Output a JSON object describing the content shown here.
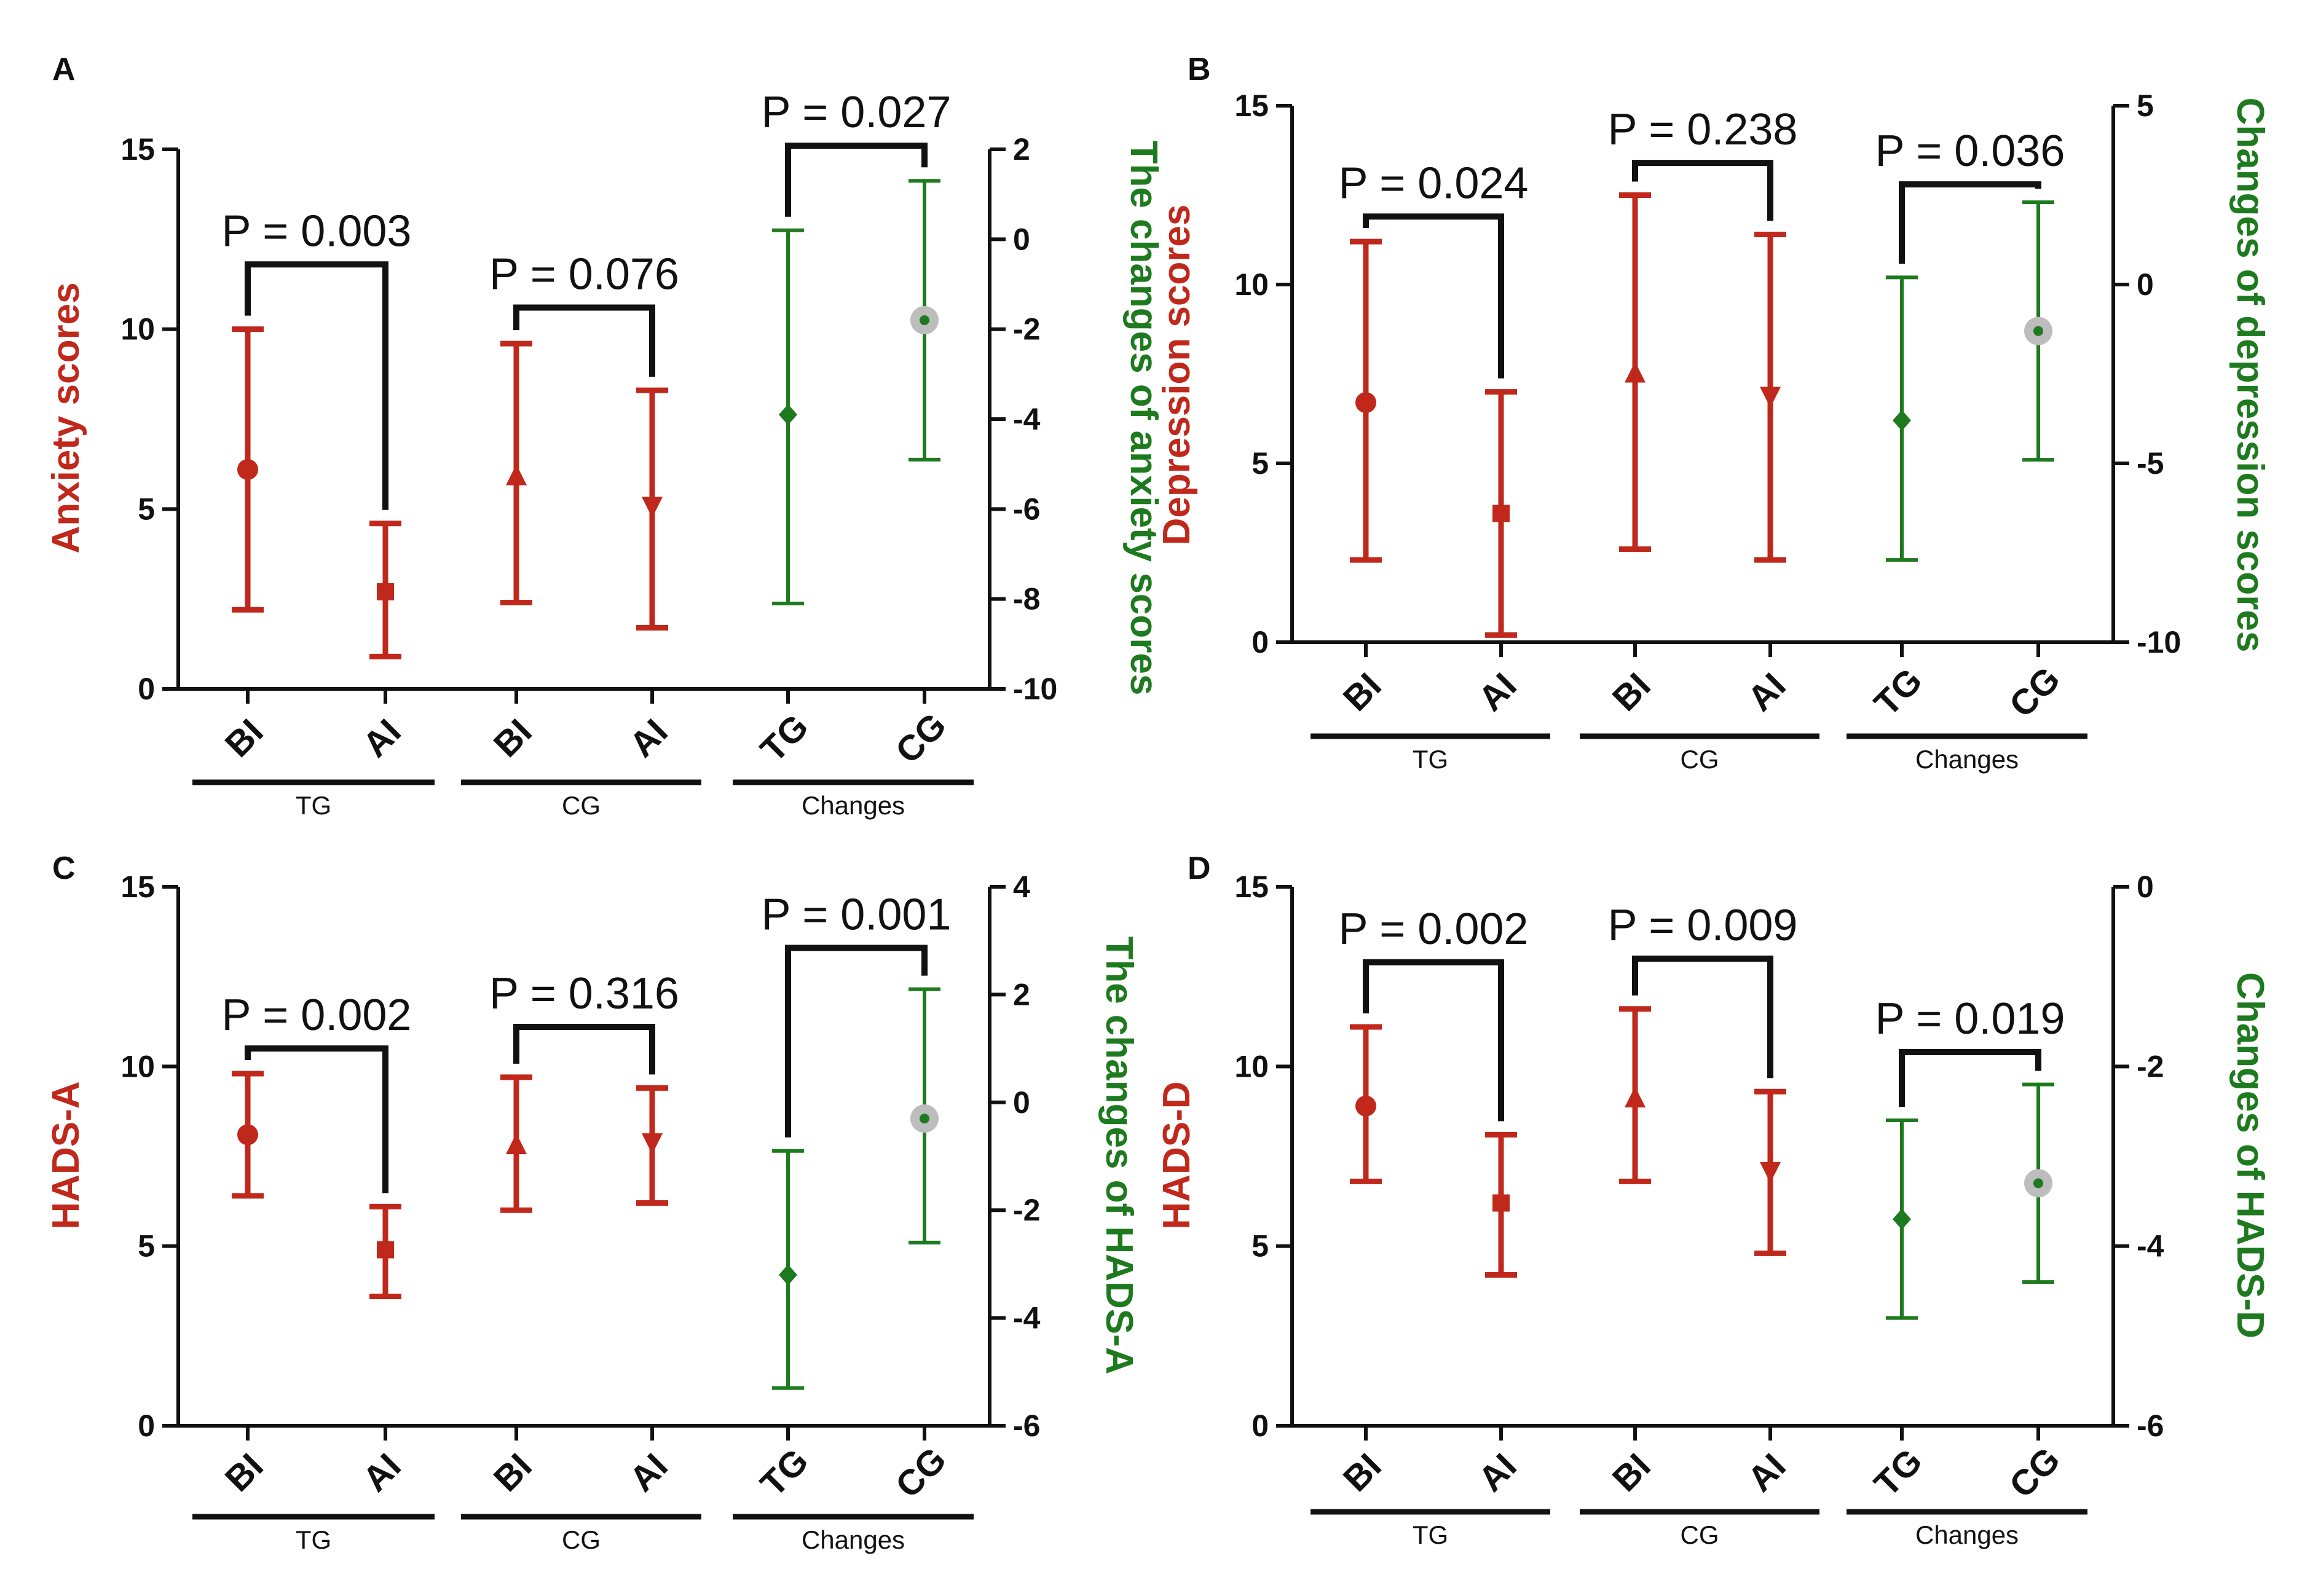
{
  "colors": {
    "primary": "#c0281c",
    "secondary": "#1e7a1e",
    "gray_marker": "#bdbdbd",
    "axis": "#111111"
  },
  "chart_data": [
    {
      "type": "errorbar",
      "panel": "A",
      "ylabel_left": "Anxiety scores",
      "ylabel_right": "The changes of anxiety scores",
      "left_ylim": [
        0,
        15
      ],
      "left_ticks": [
        0,
        5,
        10,
        15
      ],
      "right_ylim": [
        -10,
        2
      ],
      "right_ticks": [
        -10,
        -8,
        -6,
        -4,
        -2,
        0,
        2
      ],
      "categories": [
        "BI",
        "AI",
        "BI",
        "AI",
        "TG",
        "CG"
      ],
      "groups": [
        {
          "label": "TG",
          "from": 0,
          "to": 1
        },
        {
          "label": "CG",
          "from": 2,
          "to": 3
        },
        {
          "label": "Changes",
          "from": 4,
          "to": 5
        }
      ],
      "points": [
        {
          "axis": "left",
          "mean": 6.1,
          "low": 2.2,
          "high": 10.0,
          "marker": "circle"
        },
        {
          "axis": "left",
          "mean": 2.7,
          "low": 0.9,
          "high": 4.6,
          "marker": "square"
        },
        {
          "axis": "left",
          "mean": 5.9,
          "low": 2.4,
          "high": 9.6,
          "marker": "triangle-up"
        },
        {
          "axis": "left",
          "mean": 5.1,
          "low": 1.7,
          "high": 8.3,
          "marker": "triangle-down"
        },
        {
          "axis": "right",
          "mean": -3.9,
          "low": -8.1,
          "high": 0.2,
          "marker": "diamond"
        },
        {
          "axis": "right",
          "mean": -1.8,
          "low": -4.9,
          "high": 1.3,
          "marker": "gray-circle"
        }
      ],
      "comparisons": [
        {
          "from": 0,
          "to": 1,
          "label": "P = 0.003",
          "level": 11.8
        },
        {
          "from": 2,
          "to": 3,
          "label": "P = 0.076",
          "level": 10.6
        },
        {
          "from": 4,
          "to": 5,
          "label": "P = 0.027",
          "level": 15.1
        }
      ]
    },
    {
      "type": "errorbar",
      "panel": "B",
      "ylabel_left": "Depression scores",
      "ylabel_right": "Changes of depression scores",
      "left_ylim": [
        0,
        15
      ],
      "left_ticks": [
        0,
        5,
        10,
        15
      ],
      "right_ylim": [
        -10,
        5
      ],
      "right_ticks": [
        -10,
        -5,
        0,
        5
      ],
      "categories": [
        "BI",
        "AI",
        "BI",
        "AI",
        "TG",
        "CG"
      ],
      "groups": [
        {
          "label": "TG",
          "from": 0,
          "to": 1
        },
        {
          "label": "CG",
          "from": 2,
          "to": 3
        },
        {
          "label": "Changes",
          "from": 4,
          "to": 5
        }
      ],
      "points": [
        {
          "axis": "left",
          "mean": 6.7,
          "low": 2.3,
          "high": 11.2,
          "marker": "circle"
        },
        {
          "axis": "left",
          "mean": 3.6,
          "low": 0.2,
          "high": 7.0,
          "marker": "square"
        },
        {
          "axis": "left",
          "mean": 7.5,
          "low": 2.6,
          "high": 12.5,
          "marker": "triangle-up"
        },
        {
          "axis": "left",
          "mean": 6.9,
          "low": 2.3,
          "high": 11.4,
          "marker": "triangle-down"
        },
        {
          "axis": "right",
          "mean": -3.8,
          "low": -7.7,
          "high": 0.2,
          "marker": "diamond"
        },
        {
          "axis": "right",
          "mean": -1.3,
          "low": -4.9,
          "high": 2.3,
          "marker": "gray-circle"
        }
      ],
      "comparisons": [
        {
          "from": 0,
          "to": 1,
          "label": "P = 0.024",
          "level": 11.9
        },
        {
          "from": 2,
          "to": 3,
          "label": "P = 0.238",
          "level": 13.4
        },
        {
          "from": 4,
          "to": 5,
          "label": "P = 0.036",
          "level": 12.8
        }
      ]
    },
    {
      "type": "errorbar",
      "panel": "C",
      "ylabel_left": "HADS-A",
      "ylabel_right": "The changes of HADS-A",
      "left_ylim": [
        0,
        15
      ],
      "left_ticks": [
        0,
        5,
        10,
        15
      ],
      "right_ylim": [
        -6,
        4
      ],
      "right_ticks": [
        -6,
        -4,
        -2,
        0,
        2,
        4
      ],
      "categories": [
        "BI",
        "AI",
        "BI",
        "AI",
        "TG",
        "CG"
      ],
      "groups": [
        {
          "label": "TG",
          "from": 0,
          "to": 1
        },
        {
          "label": "CG",
          "from": 2,
          "to": 3
        },
        {
          "label": "Changes",
          "from": 4,
          "to": 5
        }
      ],
      "points": [
        {
          "axis": "left",
          "mean": 8.1,
          "low": 6.4,
          "high": 9.8,
          "marker": "circle"
        },
        {
          "axis": "left",
          "mean": 4.9,
          "low": 3.6,
          "high": 6.1,
          "marker": "square"
        },
        {
          "axis": "left",
          "mean": 7.8,
          "low": 6.0,
          "high": 9.7,
          "marker": "triangle-up"
        },
        {
          "axis": "left",
          "mean": 7.9,
          "low": 6.2,
          "high": 9.4,
          "marker": "triangle-down"
        },
        {
          "axis": "right",
          "mean": -3.2,
          "low": -5.3,
          "high": -0.9,
          "marker": "diamond"
        },
        {
          "axis": "right",
          "mean": -0.3,
          "low": -2.6,
          "high": 2.1,
          "marker": "gray-circle"
        }
      ],
      "comparisons": [
        {
          "from": 0,
          "to": 1,
          "label": "P = 0.002",
          "level": 10.5
        },
        {
          "from": 2,
          "to": 3,
          "label": "P = 0.316",
          "level": 11.1
        },
        {
          "from": 4,
          "to": 5,
          "label": "P = 0.001",
          "level": 13.3
        }
      ]
    },
    {
      "type": "errorbar",
      "panel": "D",
      "ylabel_left": "HADS-D",
      "ylabel_right": "Changes of HADS-D",
      "left_ylim": [
        0,
        15
      ],
      "left_ticks": [
        0,
        5,
        10,
        15
      ],
      "right_ylim": [
        -6,
        0
      ],
      "right_ticks": [
        -6,
        -4,
        -2,
        0
      ],
      "categories": [
        "BI",
        "AI",
        "BI",
        "AI",
        "TG",
        "CG"
      ],
      "groups": [
        {
          "label": "TG",
          "from": 0,
          "to": 1
        },
        {
          "label": "CG",
          "from": 2,
          "to": 3
        },
        {
          "label": "Changes",
          "from": 4,
          "to": 5
        }
      ],
      "points": [
        {
          "axis": "left",
          "mean": 8.9,
          "low": 6.8,
          "high": 11.1,
          "marker": "circle"
        },
        {
          "axis": "left",
          "mean": 6.2,
          "low": 4.2,
          "high": 8.1,
          "marker": "square"
        },
        {
          "axis": "left",
          "mean": 9.1,
          "low": 6.8,
          "high": 11.6,
          "marker": "triangle-up"
        },
        {
          "axis": "left",
          "mean": 7.1,
          "low": 4.8,
          "high": 9.3,
          "marker": "triangle-down"
        },
        {
          "axis": "right",
          "mean": -3.7,
          "low": -4.8,
          "high": -2.6,
          "marker": "diamond"
        },
        {
          "axis": "right",
          "mean": -3.3,
          "low": -4.4,
          "high": -2.2,
          "marker": "gray-circle"
        }
      ],
      "comparisons": [
        {
          "from": 0,
          "to": 1,
          "label": "P = 0.002",
          "level": 12.9
        },
        {
          "from": 2,
          "to": 3,
          "label": "P = 0.009",
          "level": 13.0
        },
        {
          "from": 4,
          "to": 5,
          "label": "P = 0.019",
          "level": 10.4
        }
      ]
    }
  ]
}
